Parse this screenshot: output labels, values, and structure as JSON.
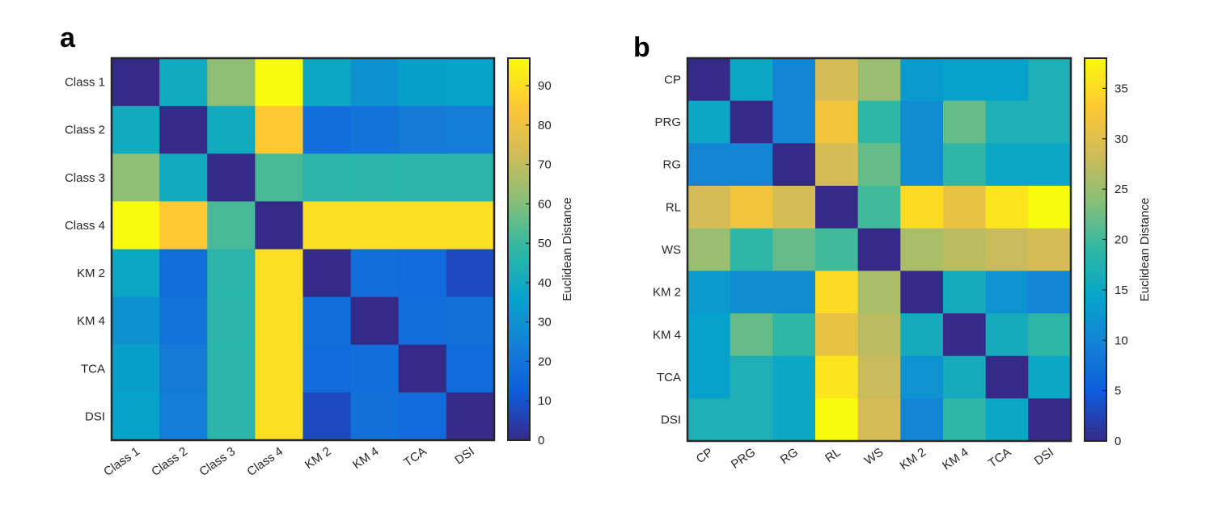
{
  "colormap": {
    "name": "parula",
    "stops": [
      "#352a87",
      "#0f5cdd",
      "#1481d6",
      "#06a4ca",
      "#2eb7a4",
      "#87bf77",
      "#d1bb59",
      "#fec832",
      "#f9fb0e"
    ]
  },
  "chart_data": [
    {
      "panel": "a",
      "type": "heatmap",
      "title": "",
      "categories_y": [
        "Class 1",
        "Class 2",
        "Class 3",
        "Class 4",
        "KM 2",
        "KM 4",
        "TCA",
        "DSI"
      ],
      "categories_x": [
        "Class 1",
        "Class 2",
        "Class 3",
        "Class 4",
        "KM 2",
        "KM 4",
        "TCA",
        "DSI"
      ],
      "values": [
        [
          0,
          40,
          62,
          97,
          38,
          30,
          35,
          36
        ],
        [
          40,
          0,
          40,
          85,
          18,
          20,
          22,
          23
        ],
        [
          62,
          40,
          0,
          52,
          47,
          47,
          47,
          47
        ],
        [
          97,
          85,
          52,
          0,
          90,
          90,
          90,
          90
        ],
        [
          38,
          18,
          47,
          90,
          0,
          18,
          17,
          8
        ],
        [
          30,
          20,
          47,
          90,
          18,
          0,
          18,
          19
        ],
        [
          35,
          22,
          47,
          90,
          17,
          18,
          0,
          17
        ],
        [
          36,
          23,
          47,
          90,
          8,
          19,
          17,
          0
        ]
      ],
      "colorbar": {
        "label": "Euclidean Distance",
        "range": [
          0,
          97
        ],
        "ticks": [
          0,
          10,
          20,
          30,
          40,
          50,
          60,
          70,
          80,
          90
        ]
      }
    },
    {
      "panel": "b",
      "type": "heatmap",
      "title": "",
      "categories_y": [
        "CP",
        "PRG",
        "RG",
        "RL",
        "WS",
        "KM 2",
        "KM 4",
        "TCA",
        "DSI"
      ],
      "categories_x": [
        "CP",
        "PRG",
        "RG",
        "RL",
        "WS",
        "KM 2",
        "KM 4",
        "TCA",
        "DSI"
      ],
      "values": [
        [
          0,
          15,
          10,
          29,
          25,
          13,
          14,
          14,
          17
        ],
        [
          15,
          0,
          10,
          32,
          19,
          11,
          22,
          17,
          17
        ],
        [
          10,
          10,
          0,
          29,
          22,
          11,
          19,
          15,
          15
        ],
        [
          29,
          32,
          29,
          0,
          20,
          35,
          31,
          36,
          38
        ],
        [
          25,
          19,
          22,
          20,
          0,
          26,
          27,
          28,
          29
        ],
        [
          13,
          11,
          11,
          35,
          26,
          0,
          16,
          12,
          10
        ],
        [
          14,
          22,
          19,
          31,
          27,
          16,
          0,
          16,
          19
        ],
        [
          14,
          17,
          15,
          36,
          28,
          12,
          16,
          0,
          15
        ],
        [
          17,
          17,
          15,
          38,
          29,
          10,
          19,
          15,
          0
        ]
      ],
      "colorbar": {
        "label": "Euclidean Distance",
        "range": [
          0,
          38
        ],
        "ticks": [
          0,
          5,
          10,
          15,
          20,
          25,
          30,
          35
        ]
      }
    }
  ]
}
